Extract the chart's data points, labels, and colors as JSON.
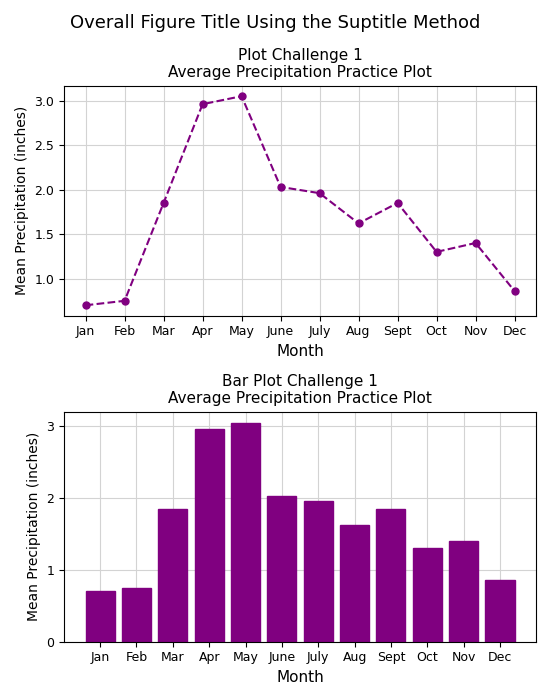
{
  "months": [
    "Jan",
    "Feb",
    "Mar",
    "Apr",
    "May",
    "June",
    "July",
    "Aug",
    "Sept",
    "Oct",
    "Nov",
    "Dec"
  ],
  "precipitation": [
    0.7,
    0.75,
    1.85,
    2.96,
    3.05,
    2.03,
    1.96,
    1.62,
    1.85,
    1.3,
    1.4,
    0.86
  ],
  "color": "#800080",
  "fig_title": "Overall Figure Title Using the Suptitle Method",
  "line_title1": "Plot Challenge 1",
  "line_title2": "Average Precipitation Practice Plot",
  "bar_title1": "Bar Plot Challenge 1",
  "bar_title2": "Average Precipitation Practice Plot",
  "xlabel": "Month",
  "ylabel": "Mean Precipitation (inches)",
  "fig_width": 5.51,
  "fig_height": 7.0,
  "suptitle_fontsize": 13,
  "title_fontsize": 11,
  "label_fontsize": 11,
  "tick_fontsize": 9
}
